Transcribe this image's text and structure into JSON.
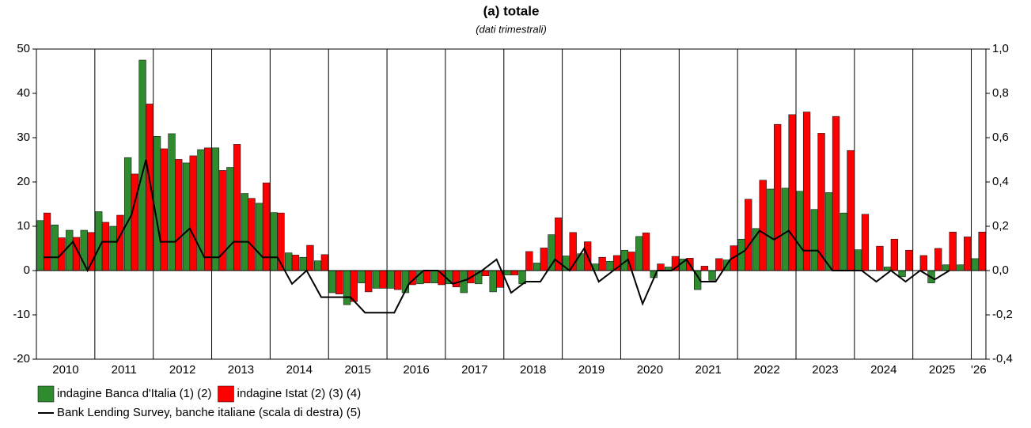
{
  "chart_data": {
    "type": "bar_line",
    "title": "(a) totale",
    "subtitle": "(dati trimestrali)",
    "categories": [
      "2010",
      null,
      null,
      null,
      "2011",
      null,
      null,
      null,
      "2012",
      null,
      null,
      null,
      "2013",
      null,
      null,
      null,
      "2014",
      null,
      null,
      null,
      "2015",
      null,
      null,
      null,
      "2016",
      null,
      null,
      null,
      "2017",
      null,
      null,
      null,
      "2018",
      null,
      null,
      null,
      "2019",
      null,
      null,
      null,
      "2020",
      null,
      null,
      null,
      "2021",
      null,
      null,
      null,
      "2022",
      null,
      null,
      null,
      "2023",
      null,
      null,
      null,
      "2024",
      null,
      null,
      null,
      "2025",
      null,
      null,
      null,
      "'26"
    ],
    "series": [
      {
        "name": "indagine Banca d'Italia (1) (2)",
        "color": "#2e8b2e",
        "kind": "bar",
        "values": [
          11.3,
          10.3,
          9.1,
          9.1,
          13.3,
          10.0,
          25.5,
          47.5,
          30.3,
          30.9,
          24.3,
          27.3,
          27.7,
          23.3,
          17.4,
          15.2,
          13.1,
          4.0,
          3.0,
          2.2,
          -5.0,
          -7.7,
          -2.8,
          -4.0,
          -4.0,
          -5.0,
          -3.0,
          -2.8,
          -3.0,
          -5.0,
          -3.0,
          -4.8,
          -1.0,
          -3.0,
          1.7,
          8.1,
          3.3,
          3.8,
          1.5,
          2.1,
          4.6,
          7.7,
          -1.6,
          0.8,
          2.6,
          -4.3,
          -2.2,
          2.4,
          7.1,
          9.5,
          18.4,
          18.6,
          17.9,
          13.8,
          17.6,
          13.0,
          4.7,
          0.1,
          0.8,
          -1.4,
          0.0,
          -2.8,
          1.3,
          1.3,
          2.7
        ]
      },
      {
        "name": "indagine Istat (2) (3) (4)",
        "color": "#ff0000",
        "kind": "bar",
        "values": [
          13.0,
          7.4,
          7.5,
          8.6,
          10.9,
          12.5,
          21.8,
          37.6,
          27.5,
          25.1,
          25.9,
          27.7,
          22.6,
          28.5,
          16.3,
          19.8,
          13.0,
          3.5,
          5.7,
          3.6,
          -5.3,
          -7.0,
          -4.8,
          -4.0,
          -4.3,
          -3.2,
          -2.8,
          -3.2,
          -3.7,
          -2.8,
          -1.2,
          -3.8,
          -1.0,
          4.3,
          5.1,
          11.9,
          8.6,
          6.5,
          3.0,
          3.4,
          4.2,
          8.5,
          1.5,
          3.2,
          2.8,
          1.0,
          2.7,
          5.6,
          16.1,
          20.4,
          33.0,
          35.2,
          35.8,
          31.0,
          34.8,
          27.1,
          12.7,
          5.5,
          7.1,
          4.6,
          3.4,
          5.0,
          8.7,
          7.6,
          8.7
        ]
      },
      {
        "name": "Bank Lending Survey, banche italiane (scala di destra) (5)",
        "color": "#000000",
        "kind": "line",
        "axis": "y2",
        "values": [
          0.06,
          0.06,
          0.13,
          0.0,
          0.13,
          0.13,
          0.25,
          0.5,
          0.13,
          0.13,
          0.19,
          0.06,
          0.06,
          0.13,
          0.13,
          0.06,
          0.06,
          -0.06,
          0.0,
          -0.12,
          -0.12,
          -0.12,
          -0.19,
          -0.19,
          -0.19,
          -0.06,
          0.0,
          0.0,
          -0.06,
          -0.04,
          0.0,
          0.05,
          -0.1,
          -0.05,
          -0.05,
          0.05,
          0.0,
          0.1,
          -0.05,
          0.0,
          0.05,
          -0.15,
          0.0,
          0.0,
          0.05,
          -0.05,
          -0.05,
          0.05,
          0.09,
          0.18,
          0.14,
          0.18,
          0.09,
          0.09,
          0.0,
          0.0,
          0.0,
          -0.05,
          0.0,
          -0.05,
          0.0,
          -0.04,
          0.0,
          null,
          null
        ]
      }
    ],
    "ylim": [
      -20,
      50
    ],
    "yticks": [
      -20,
      -10,
      0,
      10,
      20,
      30,
      40,
      50
    ],
    "y2lim": [
      -0.4,
      1.0
    ],
    "y2ticks": [
      {
        "value": -0.4,
        "label": "-0,4"
      },
      {
        "value": -0.2,
        "label": "-0,2"
      },
      {
        "value": 0,
        "label": "0,0"
      },
      {
        "value": 0.2,
        "label": "0,2"
      },
      {
        "value": 0.4,
        "label": "0,4"
      },
      {
        "value": 0.6,
        "label": "0,6"
      },
      {
        "value": 0.8,
        "label": "0,8"
      },
      {
        "value": 1.0,
        "label": "1,0"
      }
    ]
  }
}
